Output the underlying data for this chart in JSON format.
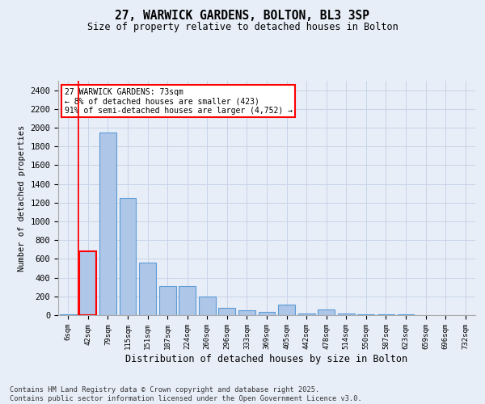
{
  "title1": "27, WARWICK GARDENS, BOLTON, BL3 3SP",
  "title2": "Size of property relative to detached houses in Bolton",
  "xlabel": "Distribution of detached houses by size in Bolton",
  "ylabel": "Number of detached properties",
  "categories": [
    "6sqm",
    "42sqm",
    "79sqm",
    "115sqm",
    "151sqm",
    "187sqm",
    "224sqm",
    "260sqm",
    "296sqm",
    "333sqm",
    "369sqm",
    "405sqm",
    "442sqm",
    "478sqm",
    "514sqm",
    "550sqm",
    "587sqm",
    "623sqm",
    "659sqm",
    "696sqm",
    "732sqm"
  ],
  "values": [
    5,
    680,
    1950,
    1250,
    560,
    310,
    310,
    200,
    80,
    50,
    35,
    110,
    15,
    60,
    15,
    10,
    8,
    5,
    3,
    3,
    2
  ],
  "bar_color": "#aec6e8",
  "bar_edge_color": "#5b9bd5",
  "highlight_bar_index": 1,
  "highlight_edge_color": "red",
  "annotation_text": "27 WARWICK GARDENS: 73sqm\n← 8% of detached houses are smaller (423)\n91% of semi-detached houses are larger (4,752) →",
  "annotation_box_color": "white",
  "annotation_box_edge_color": "red",
  "ylim": [
    0,
    2500
  ],
  "yticks": [
    0,
    200,
    400,
    600,
    800,
    1000,
    1200,
    1400,
    1600,
    1800,
    2000,
    2200,
    2400
  ],
  "grid_color": "#c8d4e8",
  "background_color": "#e8eef8",
  "vline_color": "red",
  "footnote": "Contains HM Land Registry data © Crown copyright and database right 2025.\nContains public sector information licensed under the Open Government Licence v3.0."
}
